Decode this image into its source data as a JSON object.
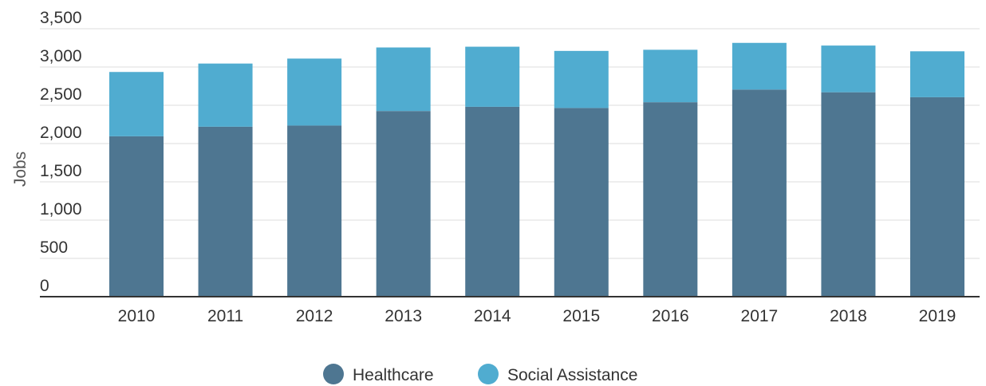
{
  "chart_data": {
    "type": "bar",
    "stacked": true,
    "categories": [
      "2010",
      "2011",
      "2012",
      "2013",
      "2014",
      "2015",
      "2016",
      "2017",
      "2018",
      "2019"
    ],
    "series": [
      {
        "name": "Healthcare",
        "color": "#4e7691",
        "values": [
          2095,
          2220,
          2235,
          2425,
          2480,
          2465,
          2540,
          2705,
          2670,
          2605
        ]
      },
      {
        "name": "Social Assistance",
        "color": "#50acd0",
        "values": [
          840,
          825,
          875,
          830,
          785,
          745,
          685,
          610,
          610,
          600
        ]
      }
    ],
    "ylabel": "Jobs",
    "xlabel": "",
    "title": "",
    "ylim": [
      0,
      3500
    ],
    "yticks": [
      0,
      500,
      1000,
      1500,
      2000,
      2500,
      3000,
      3500
    ],
    "ytick_labels": [
      "0",
      "500",
      "1,000",
      "1,500",
      "2,000",
      "2,500",
      "3,000",
      "3,500"
    ],
    "grid": true,
    "legend_position": "bottom-center"
  }
}
